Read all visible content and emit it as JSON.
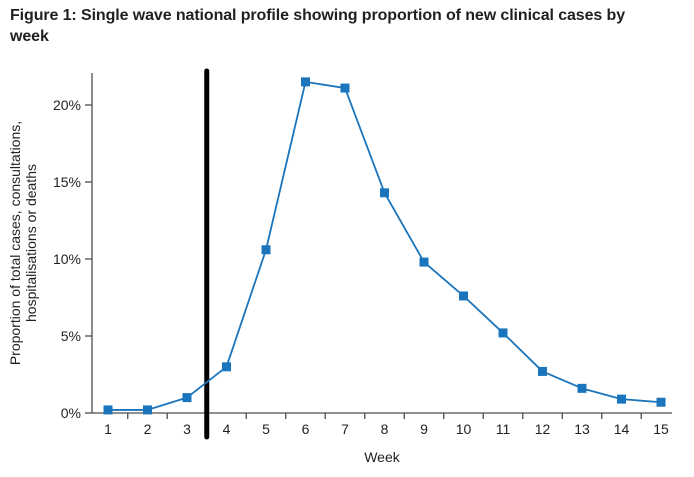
{
  "figure": {
    "title": "Figure 1: Single wave national profile showing proportion of new clinical cases by week"
  },
  "chart_data": {
    "type": "line",
    "series_name": "Proportion of new clinical cases by week",
    "x": [
      1,
      2,
      3,
      4,
      5,
      6,
      7,
      8,
      9,
      10,
      11,
      12,
      13,
      14,
      15
    ],
    "values": [
      0.2,
      0.2,
      1.0,
      3.0,
      10.6,
      21.5,
      21.1,
      14.3,
      9.8,
      7.6,
      5.2,
      2.7,
      1.6,
      0.9,
      0.7
    ],
    "xlabel": "Week",
    "ylabel": "Proportion of total cases, consultations, hospitalisations or deaths",
    "ylabel_lines": [
      "Proportion of total cases, consultations,",
      "hospitalisations or deaths"
    ],
    "y_tick_values": [
      0,
      5,
      10,
      15,
      20
    ],
    "y_tick_labels": [
      "0%",
      "5%",
      "10%",
      "15%",
      "20%"
    ],
    "ylim": [
      0,
      22
    ],
    "xlim": [
      0.5,
      15.5
    ],
    "grid": false,
    "legend": "none",
    "marker": "square",
    "annotation": {
      "type": "vertical-line",
      "x": 3.5,
      "description": "thick black vertical reference line at week 3.5"
    }
  },
  "colors": {
    "line": "#1b75bc",
    "marker": "#1b75bc",
    "axis": "#4d4d4d",
    "text": "#231f20",
    "annotation_line": "#000000",
    "background": "#ffffff"
  }
}
